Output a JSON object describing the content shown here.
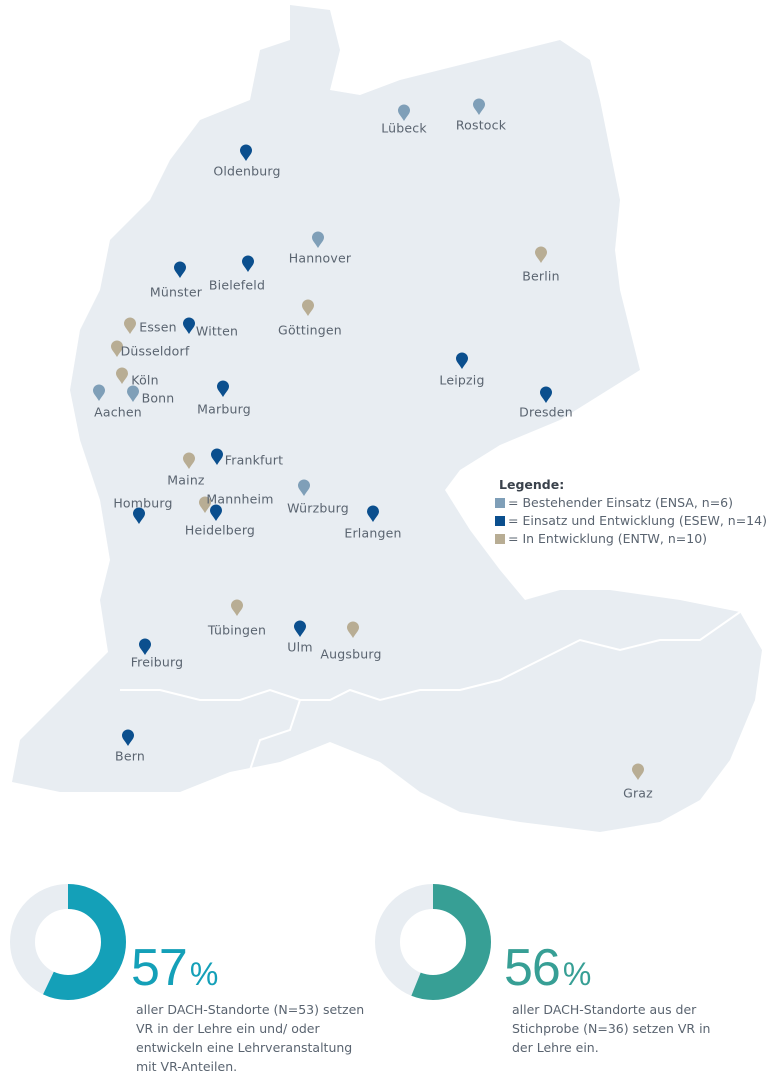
{
  "legend": {
    "title": "Legende:",
    "items": [
      {
        "key": "ENSA",
        "label": "= Bestehender Einsatz (ENSA, n=6)",
        "color": "#7f9fb8"
      },
      {
        "key": "ESEW",
        "label": "= Einsatz und Entwicklung (ESEW, n=14)",
        "color": "#0b4f8e"
      },
      {
        "key": "ENTW",
        "label": "= In Entwicklung (ENTW, n=10)",
        "color": "#b8ad94"
      }
    ]
  },
  "cities": [
    {
      "name": "Lübeck",
      "status": "ENSA"
    },
    {
      "name": "Rostock",
      "status": "ENSA"
    },
    {
      "name": "Oldenburg",
      "status": "ESEW"
    },
    {
      "name": "Hannover",
      "status": "ENSA"
    },
    {
      "name": "Berlin",
      "status": "ENTW"
    },
    {
      "name": "Münster",
      "status": "ESEW"
    },
    {
      "name": "Bielefeld",
      "status": "ESEW"
    },
    {
      "name": "Göttingen",
      "status": "ENTW"
    },
    {
      "name": "Essen",
      "status": "ENTW"
    },
    {
      "name": "Witten",
      "status": "ESEW"
    },
    {
      "name": "Düsseldorf",
      "status": "ENTW"
    },
    {
      "name": "Leipzig",
      "status": "ESEW"
    },
    {
      "name": "Köln",
      "status": "ENTW"
    },
    {
      "name": "Dresden",
      "status": "ESEW"
    },
    {
      "name": "Aachen",
      "status": "ENSA"
    },
    {
      "name": "Bonn",
      "status": "ENSA"
    },
    {
      "name": "Marburg",
      "status": "ESEW"
    },
    {
      "name": "Frankfurt",
      "status": "ESEW"
    },
    {
      "name": "Mainz",
      "status": "ENTW"
    },
    {
      "name": "Mannheim",
      "status": "ENTW"
    },
    {
      "name": "Homburg",
      "status": "ESEW"
    },
    {
      "name": "Heidelberg",
      "status": "ESEW"
    },
    {
      "name": "Würzburg",
      "status": "ENSA"
    },
    {
      "name": "Erlangen",
      "status": "ESEW"
    },
    {
      "name": "Tübingen",
      "status": "ENTW"
    },
    {
      "name": "Ulm",
      "status": "ESEW"
    },
    {
      "name": "Augsburg",
      "status": "ENTW"
    },
    {
      "name": "Freiburg",
      "status": "ESEW"
    },
    {
      "name": "Bern",
      "status": "ESEW"
    },
    {
      "name": "Graz",
      "status": "ENTW"
    }
  ],
  "stats": [
    {
      "percent": 57,
      "value": "57",
      "unit": "%",
      "color": "#14a0b8",
      "text": "aller DACH-Standorte (N=53) setzen VR in der Lehre ein und/ oder entwickeln eine Lehrveranstaltung mit VR-Anteilen."
    },
    {
      "percent": 56,
      "value": "56",
      "unit": "%",
      "color": "#379f95",
      "text": "aller DACH-Standorte aus der Stichprobe (N=36) setzen VR in der Lehre ein."
    }
  ],
  "map_color": "#e8edf2"
}
